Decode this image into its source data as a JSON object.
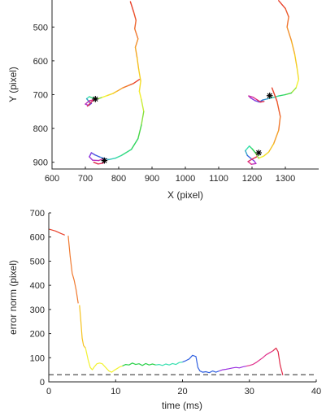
{
  "chart_data": [
    {
      "type": "line",
      "xlabel": "X (pixel)",
      "ylabel": "Y (pixel)",
      "xlim": [
        600,
        1400
      ],
      "ylim": [
        920,
        420
      ],
      "y_reversed": true,
      "xticks": [
        600,
        700,
        800,
        900,
        1000,
        1100,
        1200,
        1300
      ],
      "yticks": [
        500,
        600,
        700,
        800,
        900
      ],
      "colormap": [
        "#e8402a",
        "#f07a30",
        "#f5c21e",
        "#f2f230",
        "#2ad14a",
        "#38e0b0",
        "#2f5fe0",
        "#9b30e0",
        "#e0308c",
        "#e02a4a"
      ],
      "traces": [
        {
          "points": [
            [
              835,
              425
            ],
            [
              845,
              455
            ],
            [
              852,
              480
            ],
            [
              848,
              505
            ],
            [
              858,
              535
            ],
            [
              850,
              560
            ],
            [
              855,
              590
            ],
            [
              860,
              625
            ],
            [
              866,
              660
            ],
            [
              862,
              690
            ],
            [
              868,
              715
            ],
            [
              875,
              750
            ],
            [
              868,
              790
            ],
            [
              858,
              830
            ],
            [
              838,
              862
            ],
            [
              808,
              880
            ],
            [
              790,
              888
            ],
            [
              770,
              892
            ],
            [
              760,
              890
            ],
            [
              742,
              884
            ],
            [
              728,
              878
            ],
            [
              718,
              872
            ],
            [
              712,
              884
            ],
            [
              722,
              894
            ],
            [
              740,
              895
            ],
            [
              752,
              890
            ],
            [
              760,
              895
            ],
            [
              752,
              903
            ],
            [
              738,
              905
            ],
            [
              725,
              900
            ]
          ]
        },
        {
          "points": [
            [
              862,
              655
            ],
            [
              844,
              667
            ],
            [
              832,
              672
            ],
            [
              812,
              680
            ],
            [
              795,
              690
            ],
            [
              782,
              697
            ],
            [
              765,
              703
            ],
            [
              748,
              709
            ],
            [
              735,
              713
            ],
            [
              722,
              710
            ],
            [
              712,
              706
            ],
            [
              704,
              712
            ],
            [
              712,
              722
            ],
            [
              718,
              726
            ],
            [
              710,
              732
            ],
            [
              700,
              728
            ],
            [
              712,
              718
            ],
            [
              724,
              716
            ],
            [
              716,
              724
            ],
            [
              706,
              734
            ]
          ]
        },
        {
          "points": [
            [
              1280,
              422
            ],
            [
              1300,
              445
            ],
            [
              1310,
              470
            ],
            [
              1305,
              500
            ],
            [
              1318,
              540
            ],
            [
              1328,
              580
            ],
            [
              1335,
              620
            ],
            [
              1340,
              655
            ],
            [
              1332,
              680
            ],
            [
              1318,
              695
            ],
            [
              1300,
              700
            ],
            [
              1280,
              704
            ],
            [
              1265,
              708
            ],
            [
              1248,
              712
            ],
            [
              1232,
              716
            ],
            [
              1222,
              722
            ],
            [
              1210,
              718
            ],
            [
              1196,
              710
            ],
            [
              1190,
              704
            ],
            [
              1204,
              708
            ],
            [
              1216,
              716
            ],
            [
              1226,
              722
            ],
            [
              1236,
              720
            ]
          ]
        },
        {
          "points": [
            [
              1260,
              680
            ],
            [
              1275,
              720
            ],
            [
              1285,
              765
            ],
            [
              1280,
              805
            ],
            [
              1265,
              845
            ],
            [
              1250,
              870
            ],
            [
              1235,
              882
            ],
            [
              1220,
              888
            ],
            [
              1210,
              872
            ],
            [
              1200,
              860
            ],
            [
              1192,
              852
            ],
            [
              1180,
              866
            ],
            [
              1186,
              880
            ],
            [
              1198,
              890
            ],
            [
              1206,
              896
            ],
            [
              1212,
              904
            ],
            [
              1198,
              906
            ],
            [
              1188,
              898
            ],
            [
              1202,
              890
            ],
            [
              1214,
              884
            ]
          ]
        }
      ],
      "targets": [
        [
          730,
          713
        ],
        [
          757,
          895
        ],
        [
          1253,
          703
        ],
        [
          1220,
          872
        ]
      ]
    },
    {
      "type": "line",
      "xlabel": "time (ms)",
      "ylabel": "error norm (pixel)",
      "xlim": [
        0,
        40
      ],
      "ylim": [
        0,
        700
      ],
      "xticks": [
        0,
        10,
        20,
        30,
        40
      ],
      "yticks": [
        0,
        100,
        200,
        300,
        400,
        500,
        600,
        700
      ],
      "threshold": 30,
      "series": [
        {
          "color": "#e8402a",
          "x": [
            0,
            1.0,
            1.8,
            2.4
          ],
          "y": [
            633,
            625,
            615,
            608
          ]
        },
        {
          "color": "#f07a30",
          "x": [
            2.9,
            3.2,
            3.5,
            3.8,
            4.1,
            4.4
          ],
          "y": [
            605,
            520,
            450,
            420,
            380,
            325
          ]
        },
        {
          "color": "#f5c21e",
          "x": [
            4.6,
            4.8,
            5.0,
            5.2,
            5.5
          ],
          "y": [
            318,
            250,
            180,
            150,
            140
          ]
        },
        {
          "color": "#f2f230",
          "x": [
            5.5,
            5.9,
            6.2,
            6.5,
            6.8,
            7.2,
            7.6,
            8.0,
            8.5,
            9.0,
            9.4,
            9.8,
            10.2,
            10.6,
            11.0
          ],
          "y": [
            140,
            90,
            60,
            50,
            62,
            75,
            78,
            75,
            60,
            45,
            40,
            48,
            55,
            62,
            66
          ]
        },
        {
          "color": "#2ad14a",
          "x": [
            11.0,
            11.5,
            12.0,
            12.5,
            13.0,
            13.5,
            14.0,
            14.5,
            15.0,
            15.5,
            16.0
          ],
          "y": [
            66,
            72,
            70,
            78,
            72,
            75,
            68,
            76,
            70,
            74,
            70
          ]
        },
        {
          "color": "#38e0b0",
          "x": [
            16.0,
            16.5,
            17.0,
            17.5,
            18.0,
            18.5,
            19.0,
            19.5,
            20.0
          ],
          "y": [
            70,
            72,
            68,
            74,
            70,
            76,
            72,
            80,
            82
          ]
        },
        {
          "color": "#2f5fe0",
          "x": [
            20.0,
            20.5,
            21.0,
            21.5,
            22.0,
            22.3,
            22.6,
            23.0,
            23.5,
            24.0,
            24.5,
            25.0,
            25.5
          ],
          "y": [
            82,
            88,
            95,
            110,
            105,
            60,
            45,
            40,
            42,
            38,
            45,
            40,
            45
          ]
        },
        {
          "color": "#9b30e0",
          "x": [
            25.5,
            26.0,
            26.5,
            27.0,
            27.5,
            28.0,
            28.5,
            29.0,
            29.5
          ],
          "y": [
            45,
            50,
            52,
            55,
            58,
            60,
            58,
            62,
            65
          ]
        },
        {
          "color": "#e0308c",
          "x": [
            29.5,
            30.0,
            30.5,
            31.0,
            31.5,
            32.0,
            32.5,
            33.0,
            33.5
          ],
          "y": [
            65,
            68,
            72,
            80,
            90,
            100,
            112,
            120,
            128
          ]
        },
        {
          "color": "#e02a4a",
          "x": [
            33.5,
            34.0,
            34.3,
            34.6,
            35.0
          ],
          "y": [
            128,
            140,
            125,
            70,
            28
          ]
        }
      ]
    }
  ]
}
